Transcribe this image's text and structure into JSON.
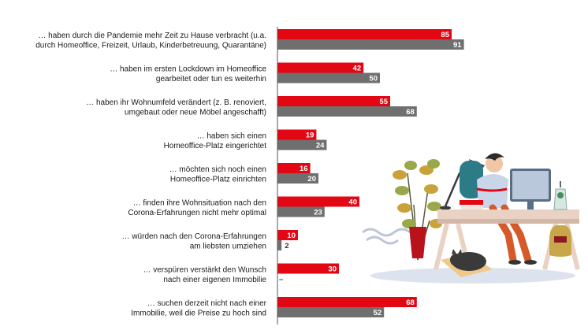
{
  "chart_data": {
    "type": "bar",
    "orientation": "horizontal",
    "title": "",
    "xlabel": "",
    "ylabel": "",
    "categories": [
      [
        "… haben durch die Pandemie mehr Zeit zu Hause verbracht (u.a.",
        "durch Homeoffice, Freizeit, Urlaub, Kinderbetreuung, Quarantäne)"
      ],
      [
        "… haben im ersten Lockdown im Homeoffice",
        "gearbeitet oder tun es weiterhin"
      ],
      [
        "… haben ihr Wohnumfeld verändert (z. B. renoviert,",
        "umgebaut oder neue Möbel angeschafft)"
      ],
      [
        "… haben sich einen",
        "Homeoffice-Platz eingerichtet"
      ],
      [
        "… möchten sich noch einen",
        "Homeoffice-Platz einrichten"
      ],
      [
        "… finden ihre Wohnsituation nach den",
        "Corona-Erfahrungen nicht mehr optimal"
      ],
      [
        "… würden nach den Corona-Erfahrungen",
        "am liebsten umziehen"
      ],
      [
        "… verspüren verstärkt den Wunsch",
        "nach einer eigenen Immobilie"
      ],
      [
        "… suchen derzeit nicht nach einer",
        "Immobilie, weil die Preise zu hoch sind"
      ]
    ],
    "series": [
      {
        "values": [
          85,
          42,
          55,
          19,
          16,
          40,
          10,
          30,
          68
        ],
        "labels": [
          "85",
          "42",
          "55",
          "19",
          "16",
          "40",
          "10",
          "30",
          "68"
        ]
      },
      {
        "values": [
          91,
          50,
          68,
          24,
          20,
          23,
          2,
          null,
          52
        ],
        "labels": [
          "91",
          "50",
          "68",
          "24",
          "20",
          "23",
          "2",
          "–",
          "52"
        ]
      }
    ],
    "xlim": [
      0,
      100
    ],
    "grid": false,
    "legend": "none"
  },
  "colors": {
    "series_1": "#e30613",
    "series_2": "#6f6f6f",
    "axis": "#555555"
  },
  "illustration": {
    "icons": [
      "potted-plant-icon",
      "desk-lamp-icon",
      "person-at-computer-icon",
      "desk-icon",
      "sleeping-cat-icon",
      "plant-in-bottle-icon",
      "books-icon"
    ]
  }
}
